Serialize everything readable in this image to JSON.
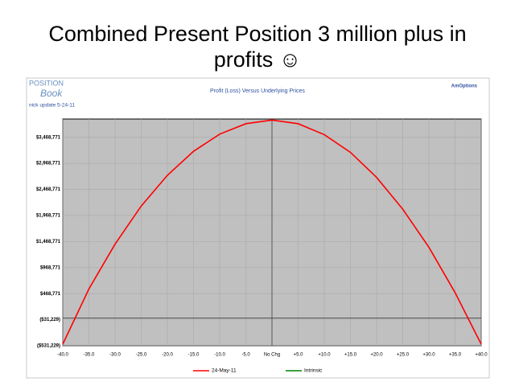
{
  "slide_title": "Combined Present Position 3 million plus in profits ☺",
  "logo": {
    "line1": "POSITION",
    "line2": "Book"
  },
  "note": "nick update 5-24-11",
  "brand": "AmOptions",
  "chart_data": {
    "type": "line",
    "title": "Profit (Loss) Versus Underlying Prices",
    "x": [
      -40,
      -35,
      -30,
      -25,
      -20,
      -15,
      -10,
      -5,
      0,
      5,
      10,
      15,
      20,
      25,
      30,
      35,
      40
    ],
    "series": [
      {
        "name": "24-May-11",
        "color": "#ff0000",
        "values": [
          -500000,
          560000,
          1420000,
          2150000,
          2740000,
          3200000,
          3530000,
          3730000,
          3800000,
          3730000,
          3520000,
          3180000,
          2700000,
          2090000,
          1360000,
          490000,
          -500000
        ]
      },
      {
        "name": "Intrinsic",
        "color": "#008000",
        "values": [
          null,
          null,
          null,
          null,
          null,
          null,
          null,
          null,
          null,
          null,
          null,
          null,
          null,
          null,
          null,
          null,
          null
        ]
      }
    ],
    "xlim": [
      -40,
      40
    ],
    "xticks": [
      {
        "value": -40,
        "label": "-40.0"
      },
      {
        "value": -35,
        "label": "-35.0"
      },
      {
        "value": -30,
        "label": "-30.0"
      },
      {
        "value": -25,
        "label": "-25.0"
      },
      {
        "value": -20,
        "label": "-20.0"
      },
      {
        "value": -15,
        "label": "-15.0"
      },
      {
        "value": -10,
        "label": "-10.0"
      },
      {
        "value": -5,
        "label": "-5.0"
      },
      {
        "value": 0,
        "label": "No Chg"
      },
      {
        "value": 5,
        "label": "+5.0"
      },
      {
        "value": 10,
        "label": "+10.0"
      },
      {
        "value": 15,
        "label": "+15.0"
      },
      {
        "value": 20,
        "label": "+20.0"
      },
      {
        "value": 25,
        "label": "+25.0"
      },
      {
        "value": 30,
        "label": "+30.0"
      },
      {
        "value": 35,
        "label": "+35.0"
      },
      {
        "value": 40,
        "label": "+40.0"
      }
    ],
    "ylim": [
      -531229,
      3820000
    ],
    "yticks": [
      {
        "value": -531229,
        "label": "($531,229)"
      },
      {
        "value": -31229,
        "label": "($31,229)"
      },
      {
        "value": 468771,
        "label": "$468,771"
      },
      {
        "value": 968771,
        "label": "$968,771"
      },
      {
        "value": 1468771,
        "label": "$1,468,771"
      },
      {
        "value": 1968771,
        "label": "$1,968,771"
      },
      {
        "value": 2468771,
        "label": "$2,468,771"
      },
      {
        "value": 2968771,
        "label": "$2,968,771"
      },
      {
        "value": 3468771,
        "label": "$3,468,771"
      }
    ],
    "grid": true
  }
}
